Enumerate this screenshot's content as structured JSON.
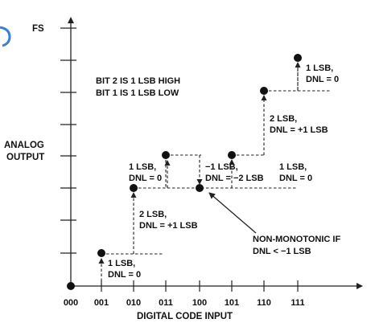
{
  "axes": {
    "y_top_label": "FS",
    "y_label_line1": "ANALOG",
    "y_label_line2": "OUTPUT",
    "x_label": "DIGITAL CODE INPUT",
    "x_ticks": [
      "000",
      "001",
      "010",
      "011",
      "100",
      "101",
      "110",
      "111"
    ]
  },
  "legend": {
    "line1": "BIT 2 IS 1 LSB HIGH",
    "line2": "BIT 1 IS 1 LSB LOW"
  },
  "annotations": {
    "code_001": {
      "line1": "1 LSB,",
      "line2": "DNL = 0"
    },
    "code_010": {
      "line1": "2 LSB,",
      "line2": "DNL = +1 LSB"
    },
    "code_011": {
      "line1": "1 LSB,",
      "line2": "DNL = 0"
    },
    "code_100": {
      "line1": "−1 LSB,",
      "line2": "DNL = −2 LSB"
    },
    "code_101": {
      "line1": "1 LSB,",
      "line2": "DNL = 0"
    },
    "code_110": {
      "line1": "2 LSB,",
      "line2": "DNL = +1 LSB"
    },
    "code_111": {
      "line1": "1 LSB,",
      "line2": "DNL = 0"
    }
  },
  "callout": {
    "line1": "NON-MONOTONIC IF",
    "line2": "DNL < −1 LSB"
  },
  "colors": {
    "ink": "#111111",
    "accent_fragment": "#3a7fd0"
  }
}
